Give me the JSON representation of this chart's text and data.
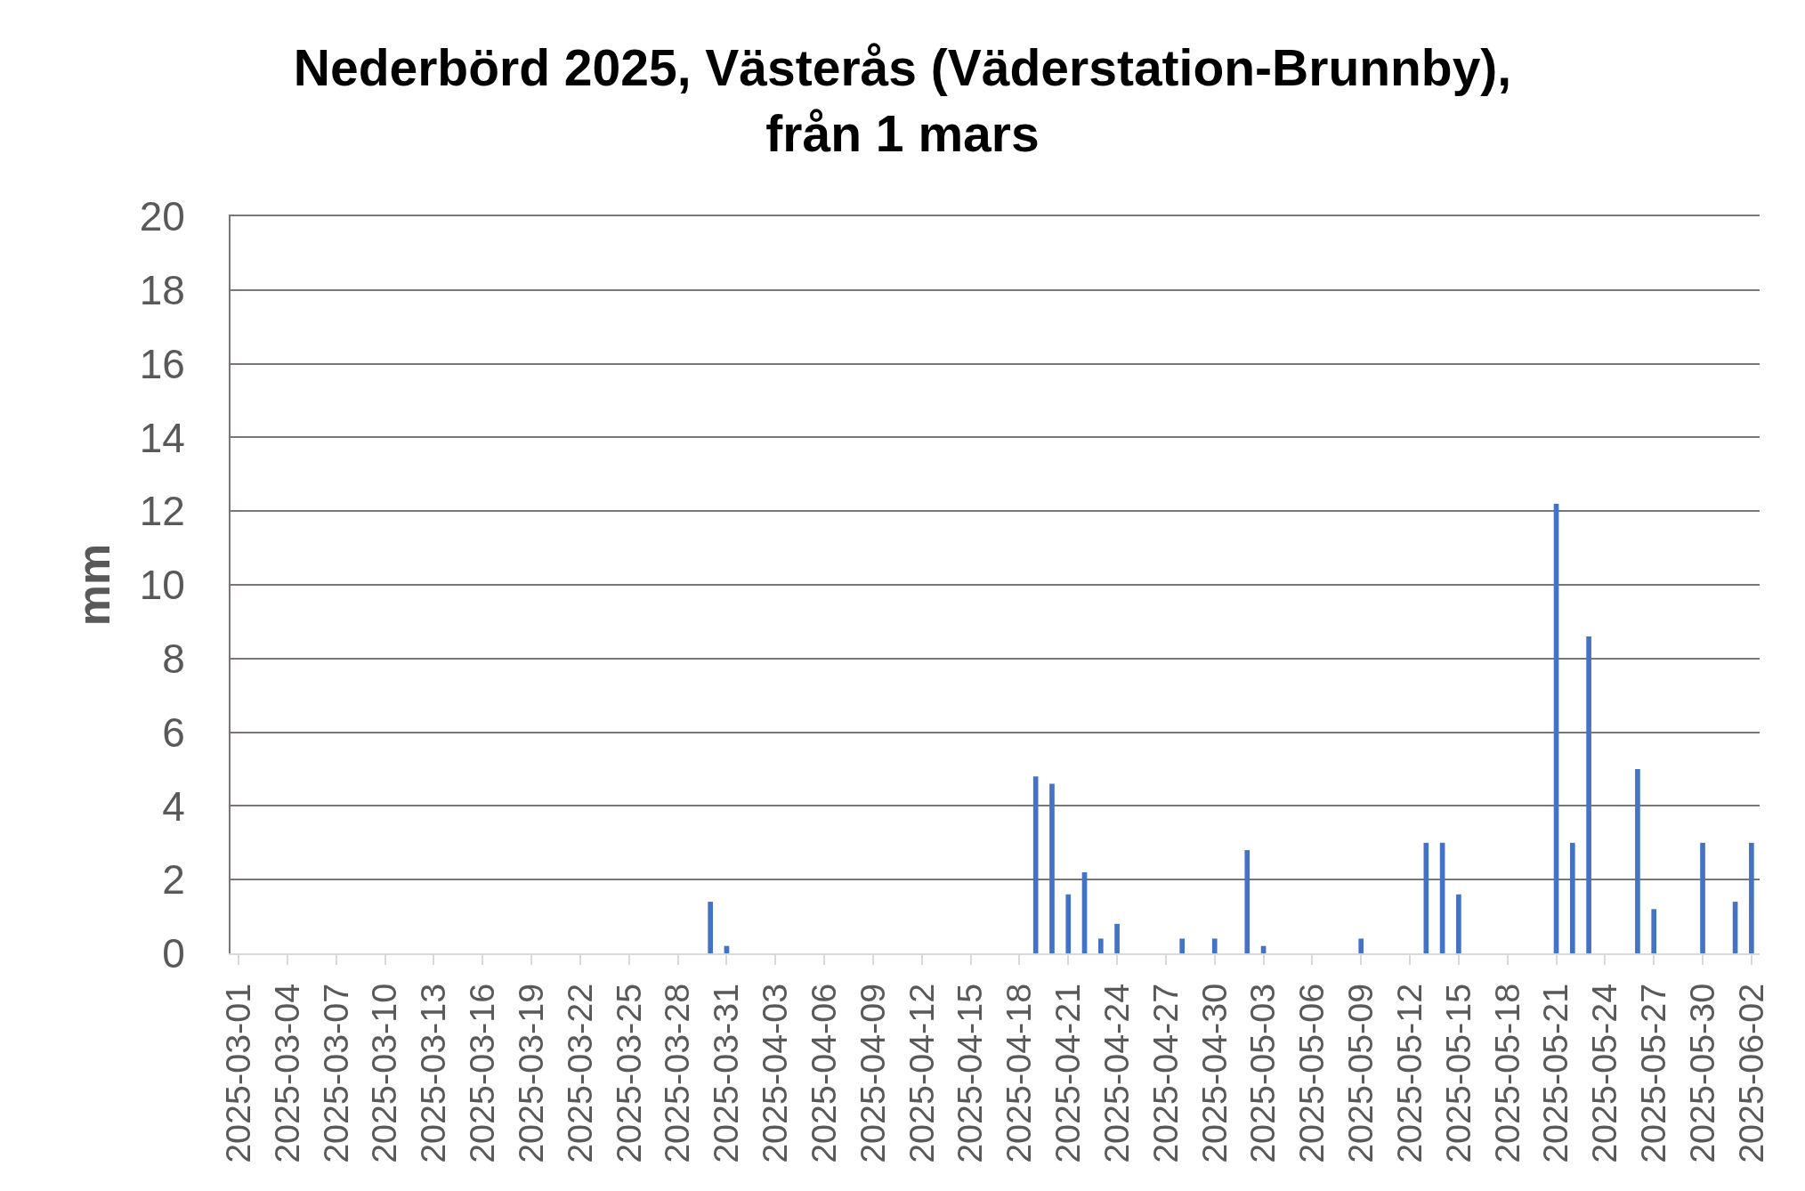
{
  "chart_data": {
    "type": "bar",
    "title": "Nederbörd 2025, Västerås (Väderstation-Brunnby),\nfrån 1 mars",
    "ylabel": "mm",
    "x": [
      "2025-03-30",
      "2025-03-31",
      "2025-04-19",
      "2025-04-20",
      "2025-04-21",
      "2025-04-22",
      "2025-04-23",
      "2025-04-24",
      "2025-04-28",
      "2025-04-30",
      "2025-05-02",
      "2025-05-03",
      "2025-05-09",
      "2025-05-13",
      "2025-05-14",
      "2025-05-15",
      "2025-05-21",
      "2025-05-22",
      "2025-05-23",
      "2025-05-26",
      "2025-05-27",
      "2025-05-30",
      "2025-06-01",
      "2025-06-02"
    ],
    "values": [
      1.4,
      0.2,
      4.8,
      4.6,
      1.6,
      2.2,
      0.4,
      0.8,
      0.4,
      0.4,
      2.8,
      0.2,
      0.4,
      3.0,
      3.0,
      1.6,
      12.2,
      3.0,
      8.6,
      5.0,
      1.2,
      3.0,
      1.4,
      3.0
    ],
    "color": "#4472c4",
    "xlim": [
      "2025-02-28T12:00",
      "2025-06-02T12:00"
    ],
    "xticks": [
      "2025-03-01",
      "2025-03-04",
      "2025-03-07",
      "2025-03-10",
      "2025-03-13",
      "2025-03-16",
      "2025-03-19",
      "2025-03-22",
      "2025-03-25",
      "2025-03-28",
      "2025-03-31",
      "2025-04-03",
      "2025-04-06",
      "2025-04-09",
      "2025-04-12",
      "2025-04-15",
      "2025-04-18",
      "2025-04-21",
      "2025-04-24",
      "2025-04-27",
      "2025-04-30",
      "2025-05-03",
      "2025-05-06",
      "2025-05-09",
      "2025-05-12",
      "2025-05-15",
      "2025-05-18",
      "2025-05-21",
      "2025-05-24",
      "2025-05-27",
      "2025-05-30",
      "2025-06-02"
    ],
    "ylim": [
      0,
      20
    ],
    "yticks": [
      0,
      2,
      4,
      6,
      8,
      10,
      12,
      14,
      16,
      18,
      20
    ],
    "grid": "y"
  }
}
